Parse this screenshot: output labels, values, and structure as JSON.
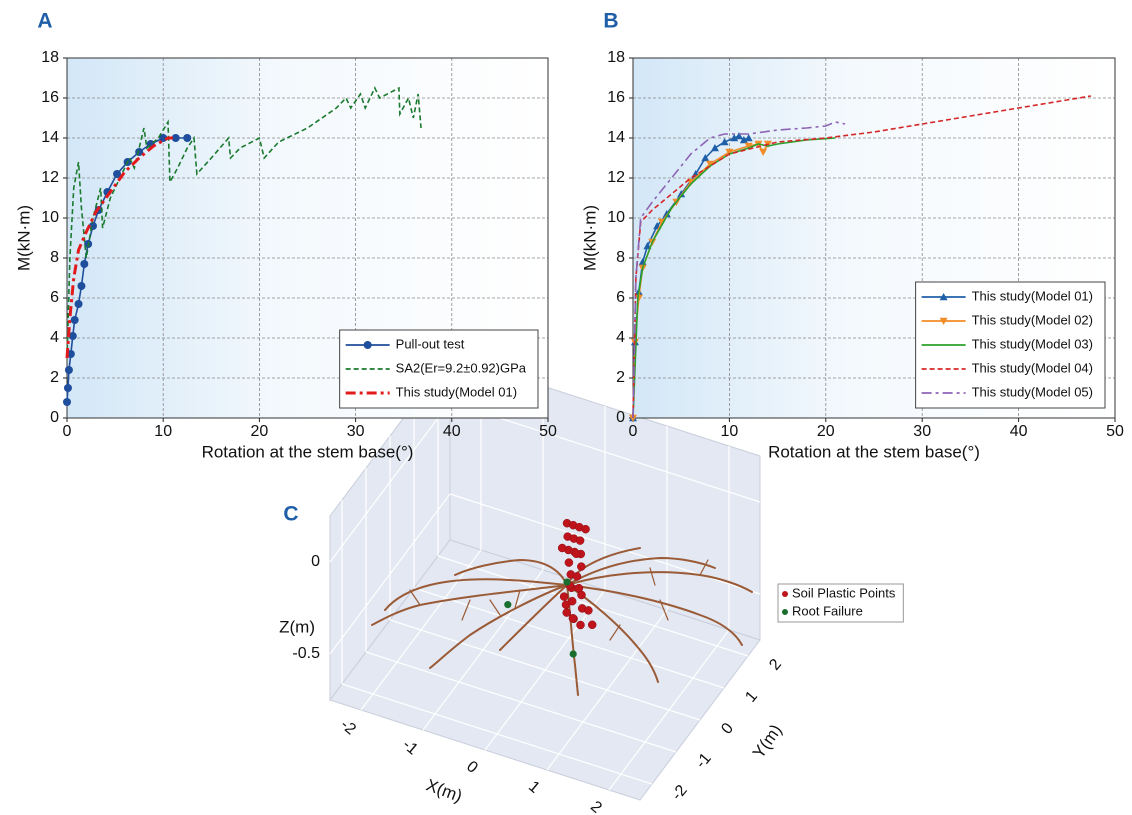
{
  "chart_data": [
    {
      "type": "line",
      "panel": "A",
      "x_label": "Rotation at the stem base(°)",
      "y_label": "M(kN·m)",
      "xlim": [
        0,
        50
      ],
      "ylim": [
        0,
        18
      ],
      "xticks": [
        0,
        10,
        20,
        30,
        40,
        50
      ],
      "yticks": [
        0,
        2,
        4,
        6,
        8,
        10,
        12,
        14,
        16,
        18
      ],
      "grid": true,
      "legend": "lower right",
      "series": [
        {
          "name": "Pull-out test",
          "color": "#1f4e9c",
          "dash": "solid",
          "marker": "circle",
          "x": [
            0,
            0.1,
            0.2,
            0.4,
            0.6,
            0.8,
            1.2,
            1.5,
            1.8,
            2.2,
            2.7,
            3.3,
            4.2,
            5.2,
            6.3,
            7.5,
            8.7,
            10,
            11.3,
            12.5
          ],
          "values": [
            0.8,
            1.5,
            2.4,
            3.2,
            4.1,
            4.9,
            5.7,
            6.6,
            7.7,
            8.7,
            9.6,
            10.4,
            11.3,
            12.2,
            12.8,
            13.3,
            13.7,
            14.0,
            14.0,
            14.0
          ]
        },
        {
          "name": "SA2(Er=9.2±0.92)GPa",
          "color": "#1a7a2e",
          "dash": "dashed",
          "x": [
            0,
            0.3,
            0.7,
            1.2,
            1.5,
            2,
            2.7,
            3.5,
            3.7,
            4.5,
            5.5,
            6.5,
            7,
            8,
            8.3,
            9.5,
            10.5,
            10.7,
            11.5,
            12.5,
            13.2,
            13.5,
            15,
            16.8,
            17,
            18,
            20,
            20.5,
            22,
            25,
            28,
            29,
            29.5,
            30.5,
            31,
            32,
            32.5,
            34.5,
            34.6,
            35.5,
            36,
            36.5,
            36.8
          ],
          "values": [
            3,
            8,
            11.5,
            12.8,
            10.5,
            8,
            10,
            11.5,
            9.5,
            11,
            12,
            13,
            12.5,
            14.5,
            13.5,
            14,
            14.8,
            11.8,
            12.5,
            13.5,
            14,
            12.2,
            13,
            14,
            13,
            13.5,
            14,
            13,
            13.8,
            14.5,
            15.5,
            16,
            15.5,
            16.2,
            15.5,
            16.5,
            16,
            16.5,
            15.2,
            16,
            15,
            16.2,
            14.5
          ]
        },
        {
          "name": "This study(Model 01)",
          "color": "#e31a1c",
          "dash": "dashdot",
          "linewidth": 3,
          "x": [
            0,
            0.3,
            0.7,
            1.2,
            2,
            3,
            4.5,
            6,
            7.5,
            9,
            10.5,
            11
          ],
          "values": [
            3,
            5,
            7,
            8.4,
            9.3,
            10.3,
            11.3,
            12.3,
            13,
            13.6,
            14,
            14
          ]
        }
      ]
    },
    {
      "type": "line",
      "panel": "B",
      "x_label": "Rotation at the stem base(°)",
      "y_label": "M(kN·m)",
      "xlim": [
        0,
        50
      ],
      "ylim": [
        0,
        18
      ],
      "xticks": [
        0,
        10,
        20,
        30,
        40,
        50
      ],
      "yticks": [
        0,
        2,
        4,
        6,
        8,
        10,
        12,
        14,
        16,
        18
      ],
      "grid": true,
      "legend": "lower right",
      "series": [
        {
          "name": "This study(Model 01)",
          "color": "#1f5fa8",
          "dash": "solid",
          "marker": "triangle-up",
          "x": [
            0,
            0.2,
            0.6,
            1,
            1.5,
            2.5,
            3.5,
            5,
            6.5,
            7.5,
            8.5,
            9.5,
            10.5,
            11,
            11.5,
            12
          ],
          "values": [
            0,
            3.8,
            6.3,
            7.8,
            8.6,
            9.6,
            10.2,
            11.2,
            12.2,
            13,
            13.5,
            13.8,
            14,
            14.1,
            13.9,
            14
          ]
        },
        {
          "name": "This study(Model 02)",
          "color": "#f28c28",
          "dash": "solid",
          "marker": "triangle-down",
          "x": [
            0,
            0.2,
            0.6,
            1,
            2,
            3,
            4.5,
            6,
            8,
            10,
            12,
            13,
            13.5,
            14
          ],
          "values": [
            0,
            3.8,
            6,
            7.5,
            8.8,
            9.8,
            10.8,
            11.8,
            12.7,
            13.3,
            13.6,
            13.7,
            13.3,
            13.7
          ]
        },
        {
          "name": "This study(Model 03)",
          "color": "#2ca02c",
          "dash": "solid",
          "x": [
            0,
            0.5,
            1,
            2,
            4,
            6,
            8,
            10,
            12,
            13,
            14,
            15,
            18,
            21
          ],
          "values": [
            0,
            6,
            7.5,
            8.8,
            10.5,
            11.7,
            12.6,
            13.2,
            13.5,
            13.7,
            13.6,
            13.7,
            13.9,
            14
          ]
        },
        {
          "name": "This study(Model 04)",
          "color": "#d62728",
          "dash": "dashed",
          "x": [
            0,
            0.3,
            0.8,
            2,
            4,
            6,
            8,
            10,
            15,
            20,
            25,
            30,
            35,
            40,
            45,
            47.5
          ],
          "values": [
            0,
            7,
            9.8,
            10.4,
            11.2,
            12,
            12.6,
            13.2,
            13.8,
            14,
            14.3,
            14.7,
            15.1,
            15.5,
            15.9,
            16.1
          ]
        },
        {
          "name": "This study(Model 05)",
          "color": "#8e63b5",
          "dash": "dashdot",
          "x": [
            0,
            0.3,
            0.8,
            2,
            4,
            6,
            8,
            9.5,
            12,
            15,
            18,
            20,
            21,
            22
          ],
          "values": [
            0,
            7,
            10,
            10.8,
            12,
            13.2,
            14,
            14.2,
            14.2,
            14.4,
            14.5,
            14.6,
            14.8,
            14.7
          ]
        }
      ]
    },
    {
      "type": "scatter3d",
      "panel": "C",
      "x_label": "X(m)",
      "y_label": "Y(m)",
      "z_label": "Z(m)",
      "xlim": [
        -2.5,
        2.5
      ],
      "ylim": [
        -2.5,
        2.5
      ],
      "zlim": [
        -0.75,
        0.25
      ],
      "xticks": [
        -2,
        -1,
        0,
        1,
        2
      ],
      "yticks": [
        -2,
        -1,
        0,
        1,
        2
      ],
      "zticks": [
        0,
        -0.5
      ],
      "series": [
        {
          "name": "Soil Plastic Points",
          "color": "#c0141c",
          "x": [
            0.2,
            0.3,
            0.4,
            0.5,
            0.25,
            0.35,
            0.45,
            0.3,
            0.4,
            0.2,
            0.5,
            0.35,
            0.25,
            0.45,
            0.3,
            0.4,
            0.35,
            0.3,
            0.45,
            0.25,
            0.4,
            0.3,
            0.55,
            0.6,
            0.7,
            0.5,
            0.65,
            0.8,
            0.35,
            0.45
          ],
          "y": [
            0.4,
            0.4,
            0.4,
            0.4,
            0.3,
            0.3,
            0.3,
            0.2,
            0.2,
            0.2,
            0.2,
            0.4,
            0.35,
            0.35,
            0.3,
            0.3,
            0.2,
            0.25,
            0.25,
            0.15,
            0.1,
            0.1,
            0.1,
            0.0,
            0.0,
            -0.1,
            -0.2,
            -0.1,
            0.0,
            0.0
          ],
          "z": [
            0.0,
            0.0,
            0.0,
            0.0,
            -0.05,
            -0.05,
            -0.05,
            -0.1,
            -0.1,
            -0.1,
            -0.1,
            -0.15,
            -0.2,
            -0.2,
            -0.25,
            -0.25,
            -0.3,
            -0.3,
            -0.3,
            -0.35,
            -0.35,
            -0.38,
            -0.3,
            -0.35,
            -0.35,
            -0.4,
            -0.4,
            -0.4,
            -0.4,
            -0.42
          ]
        },
        {
          "name": "Root Failure",
          "color": "#1a6e2e",
          "x": [
            0.2,
            -0.6,
            0.3
          ],
          "y": [
            0.4,
            0,
            0.4
          ],
          "z": [
            -0.32,
            -0.46,
            -0.7
          ]
        }
      ]
    }
  ]
}
